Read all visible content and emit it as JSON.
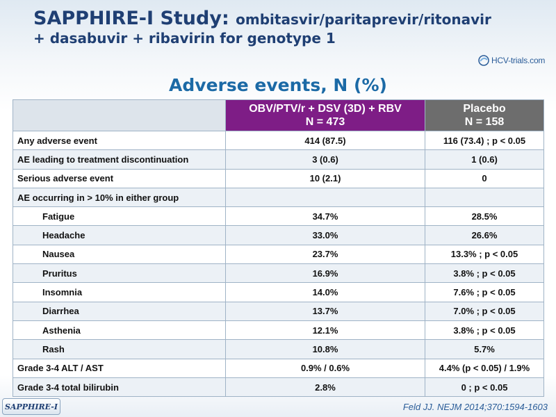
{
  "header": {
    "title_bold": "SAPPHIRE-I Study:",
    "title_rest": "ombitasvir/paritaprevir/ritonavir",
    "subtitle": "+ dasabuvir + ribavirin for genotype 1",
    "logo_text": "HCV-trials.com"
  },
  "section_title": "Adverse events, N (%)",
  "table": {
    "col1_line1": "OBV/PTV/r + DSV (3D) + RBV",
    "col1_line2": "N = 473",
    "col2_line1": "Placebo",
    "col2_line2": "N = 158",
    "rows": [
      {
        "label": "Any adverse event",
        "v1": "414 (87.5)",
        "v2": "116 (73.4) ; p < 0.05"
      },
      {
        "label": "AE leading to treatment discontinuation",
        "v1": "3 (0.6)",
        "v2": "1 (0.6)"
      },
      {
        "label": "Serious adverse event",
        "v1": "10 (2.1)",
        "v2": "0"
      },
      {
        "label": "AE occurring in > 10% in either group",
        "v1": "",
        "v2": ""
      },
      {
        "label": "Fatigue",
        "v1": "34.7%",
        "v2": "28.5%"
      },
      {
        "label": "Headache",
        "v1": "33.0%",
        "v2": "26.6%"
      },
      {
        "label": "Nausea",
        "v1": "23.7%",
        "v2": "13.3% ; p < 0.05"
      },
      {
        "label": "Pruritus",
        "v1": "16.9%",
        "v2": "3.8% ; p < 0.05"
      },
      {
        "label": "Insomnia",
        "v1": "14.0%",
        "v2": "7.6% ; p < 0.05"
      },
      {
        "label": "Diarrhea",
        "v1": "13.7%",
        "v2": "7.0% ; p < 0.05"
      },
      {
        "label": "Asthenia",
        "v1": "12.1%",
        "v2": "3.8% ; p < 0.05"
      },
      {
        "label": "Rash",
        "v1": "10.8%",
        "v2": "5.7%"
      },
      {
        "label": "Grade 3-4 ALT / AST",
        "v1": "0.9% / 0.6%",
        "v2": "4.4% (p < 0.05) / 1.9%"
      },
      {
        "label": "Grade 3-4 total bilirubin",
        "v1": "2.8%",
        "v2": "0 ; p < 0.05"
      }
    ]
  },
  "footer": {
    "badge": "SAPPHIRE-I",
    "citation": "Feld JJ. NEJM 2014;370:1594-1603"
  },
  "colors": {
    "title": "#1f3f73",
    "section_title": "#1c6aa6",
    "col1_header": "#7e1d86",
    "col2_header": "#6d6d6d"
  }
}
